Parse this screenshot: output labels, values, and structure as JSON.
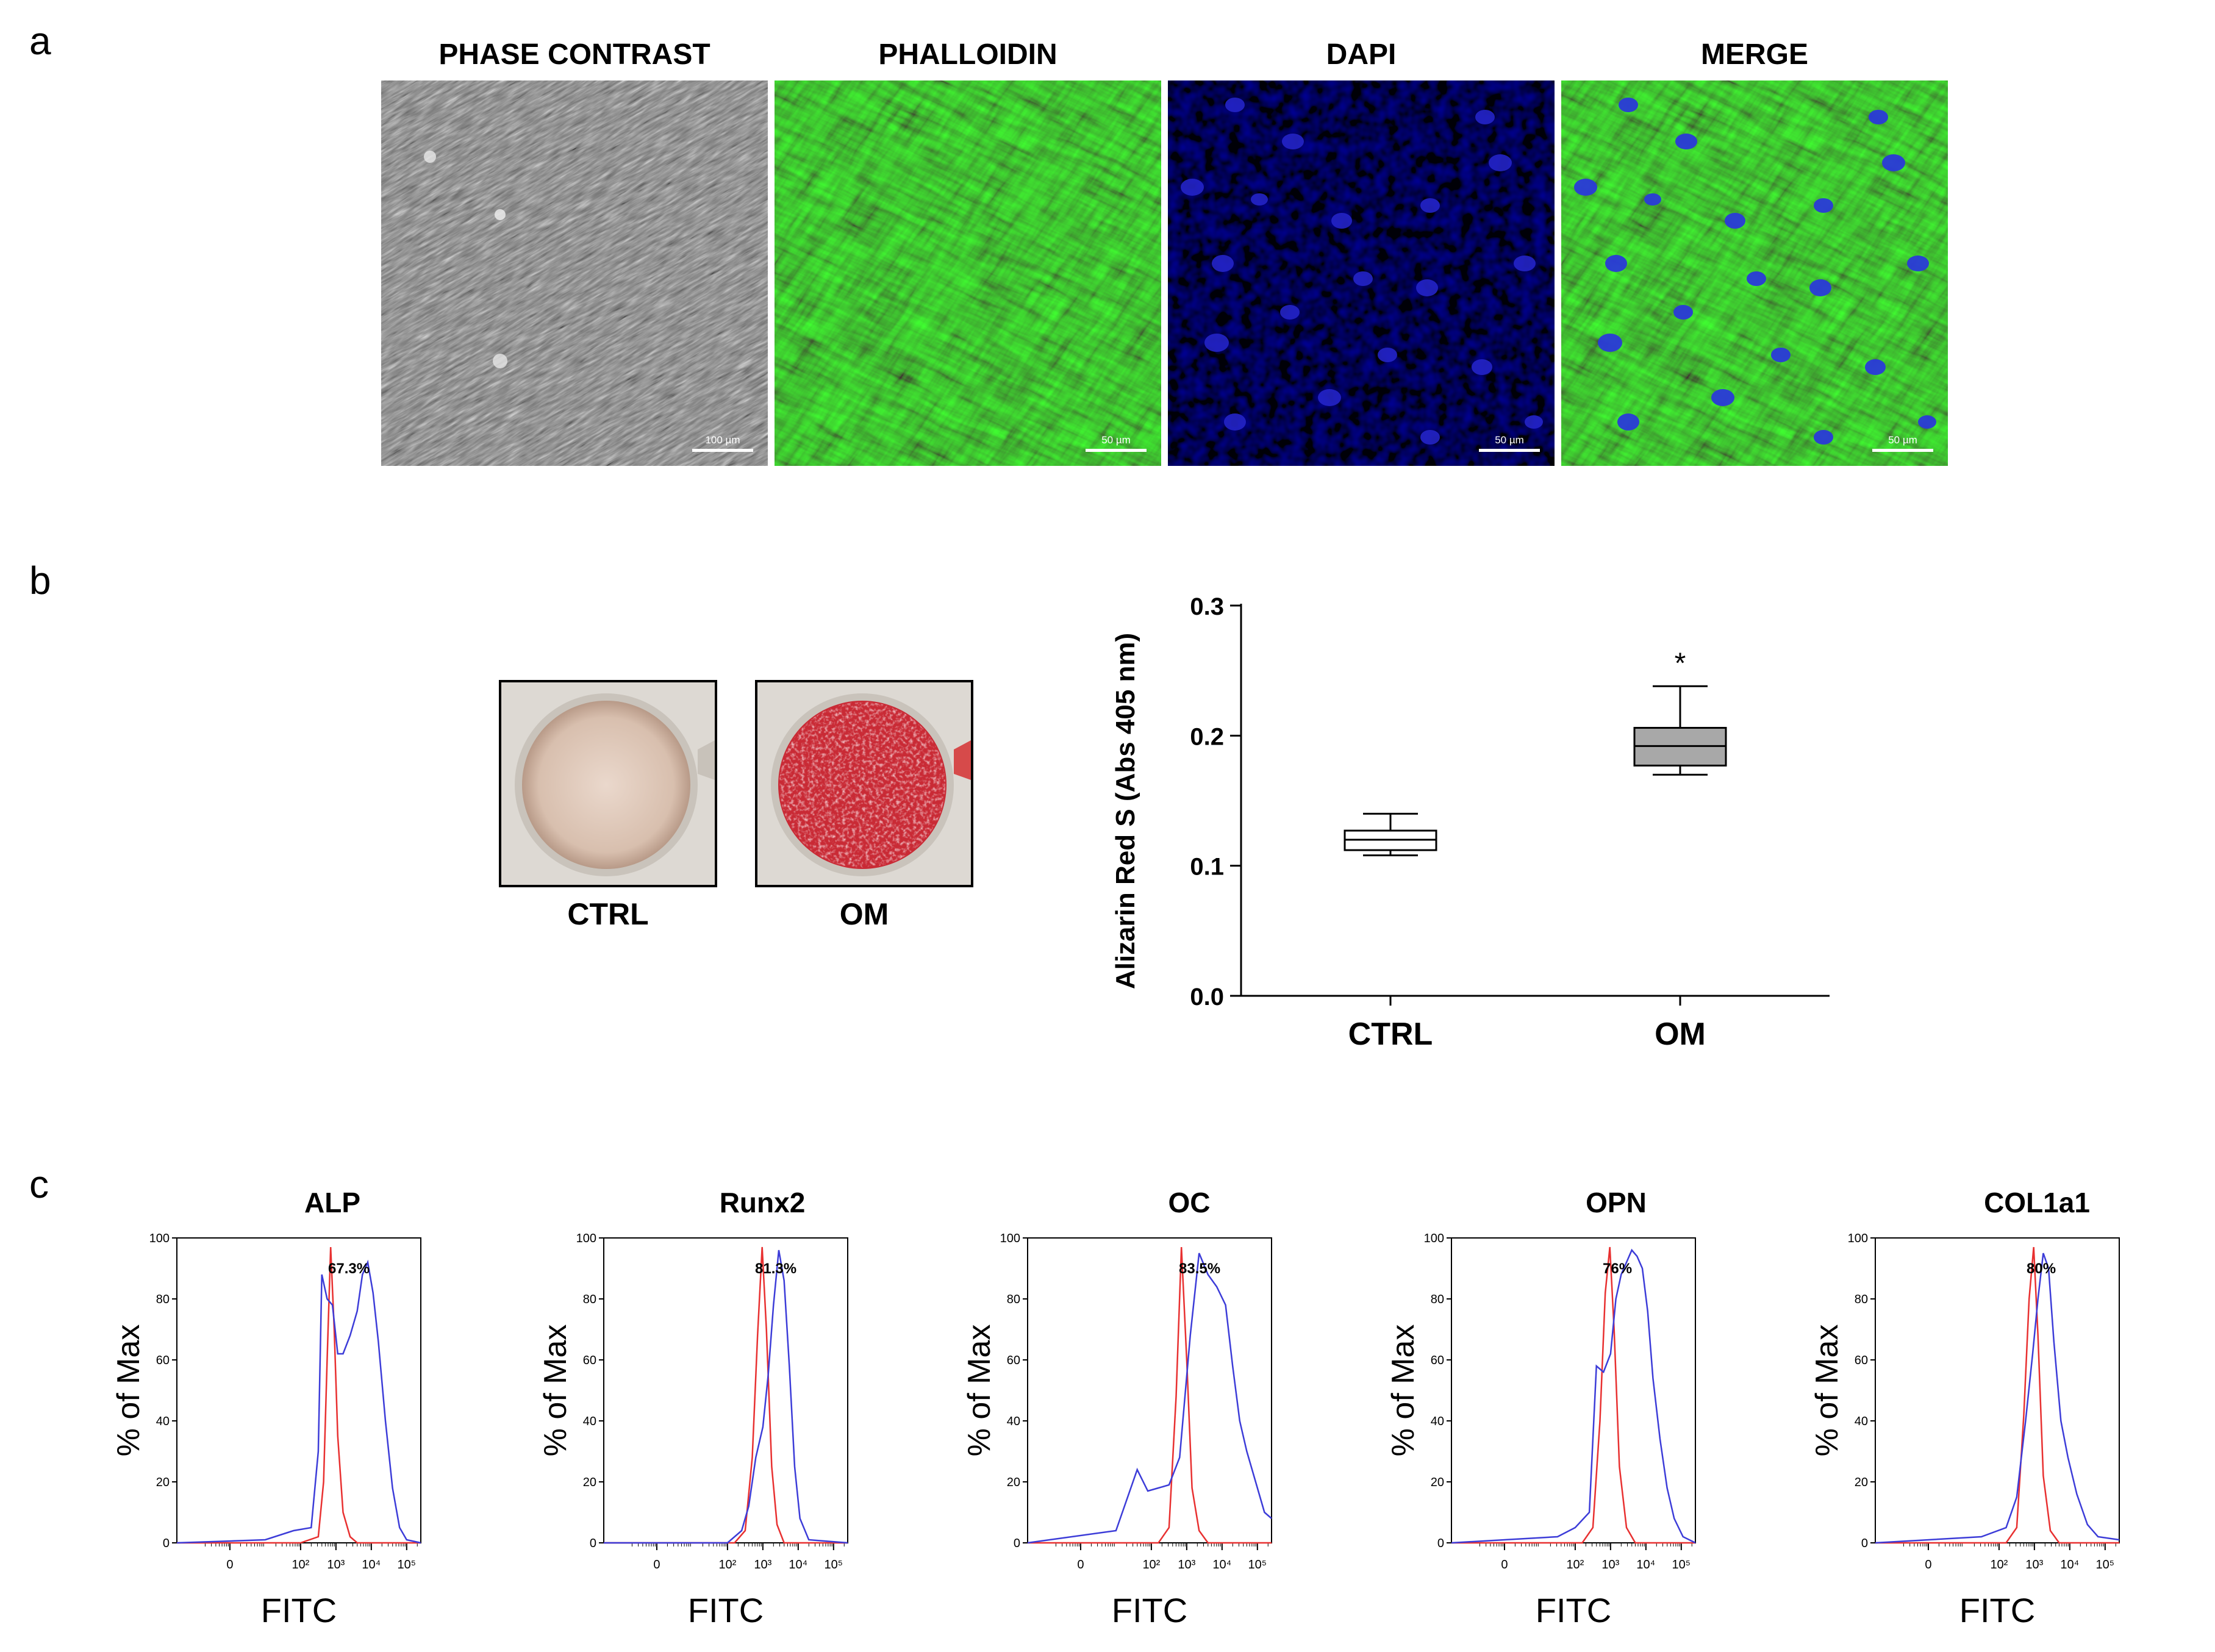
{
  "panel_a": {
    "letter": "a",
    "images": [
      {
        "title": "PHASE CONTRAST",
        "scale": "100 µm"
      },
      {
        "title": "PHALLOIDIN",
        "scale": "50 µm"
      },
      {
        "title": "DAPI",
        "scale": "50 µm"
      },
      {
        "title": "MERGE",
        "scale": "50 µm"
      }
    ]
  },
  "panel_b": {
    "letter": "b",
    "dishes": [
      {
        "label": "CTRL"
      },
      {
        "label": "OM"
      }
    ]
  },
  "panel_c": {
    "letter": "c"
  },
  "colors": {
    "isotype": "#e83030",
    "stained": "#3c3cd8",
    "box_ctrl": "#ffffff",
    "box_om": "#a8a8a8"
  },
  "chart_data": [
    {
      "type": "box",
      "ylabel": "Alizarin Red S (Abs 405 nm)",
      "ylim": [
        0.0,
        0.3
      ],
      "yticks": [
        "0.0",
        "0.1",
        "0.2",
        "0.3"
      ],
      "categories": [
        "CTRL",
        "OM"
      ],
      "boxes": [
        {
          "name": "CTRL",
          "min": 0.108,
          "q1": 0.112,
          "median": 0.12,
          "q3": 0.127,
          "max": 0.14
        },
        {
          "name": "OM",
          "min": 0.17,
          "q1": 0.177,
          "median": 0.192,
          "q3": 0.206,
          "max": 0.238
        }
      ],
      "annotation": "*"
    },
    {
      "type": "histogram_panels",
      "xlabel": "FITC",
      "ylabel": "% of Max",
      "yticks": [
        "0",
        "20",
        "40",
        "60",
        "80",
        "100"
      ],
      "xticks": [
        "0",
        "10²",
        "10³",
        "10⁴",
        "10⁵"
      ],
      "panels": [
        {
          "title": "ALP",
          "percent": "67.3%",
          "red": [
            [
              -1.5,
              0
            ],
            [
              2,
              0
            ],
            [
              2.5,
              2
            ],
            [
              2.65,
              20
            ],
            [
              2.75,
              60
            ],
            [
              2.85,
              97
            ],
            [
              2.95,
              70
            ],
            [
              3.05,
              35
            ],
            [
              3.2,
              10
            ],
            [
              3.4,
              2
            ],
            [
              3.6,
              0
            ],
            [
              5.4,
              0
            ]
          ],
          "blue": [
            [
              -1.5,
              0
            ],
            [
              1,
              1
            ],
            [
              1.8,
              4
            ],
            [
              2.3,
              5
            ],
            [
              2.5,
              30
            ],
            [
              2.6,
              88
            ],
            [
              2.75,
              80
            ],
            [
              2.9,
              78
            ],
            [
              3.05,
              62
            ],
            [
              3.2,
              62
            ],
            [
              3.4,
              68
            ],
            [
              3.6,
              76
            ],
            [
              3.75,
              88
            ],
            [
              3.9,
              92
            ],
            [
              4.05,
              82
            ],
            [
              4.2,
              66
            ],
            [
              4.4,
              40
            ],
            [
              4.6,
              18
            ],
            [
              4.8,
              5
            ],
            [
              5,
              1
            ],
            [
              5.4,
              0
            ]
          ]
        },
        {
          "title": "Runx2",
          "percent": "81.3%",
          "red": [
            [
              -1.5,
              0
            ],
            [
              2.2,
              0
            ],
            [
              2.5,
              4
            ],
            [
              2.7,
              28
            ],
            [
              2.85,
              68
            ],
            [
              2.98,
              97
            ],
            [
              3.1,
              70
            ],
            [
              3.25,
              25
            ],
            [
              3.4,
              6
            ],
            [
              3.6,
              0
            ],
            [
              5.4,
              0
            ]
          ],
          "blue": [
            [
              -1.5,
              0
            ],
            [
              2,
              0
            ],
            [
              2.4,
              4
            ],
            [
              2.6,
              12
            ],
            [
              2.8,
              28
            ],
            [
              3,
              38
            ],
            [
              3.15,
              55
            ],
            [
              3.3,
              78
            ],
            [
              3.45,
              96
            ],
            [
              3.6,
              86
            ],
            [
              3.75,
              58
            ],
            [
              3.9,
              25
            ],
            [
              4.05,
              8
            ],
            [
              4.3,
              1
            ],
            [
              5.4,
              0
            ]
          ]
        },
        {
          "title": "OC",
          "percent": "83.5%",
          "red": [
            [
              -1.5,
              0
            ],
            [
              2.2,
              0
            ],
            [
              2.5,
              5
            ],
            [
              2.7,
              48
            ],
            [
              2.85,
              97
            ],
            [
              3,
              60
            ],
            [
              3.15,
              18
            ],
            [
              3.35,
              4
            ],
            [
              3.6,
              0
            ],
            [
              5.4,
              0
            ]
          ],
          "blue": [
            [
              -1.5,
              0
            ],
            [
              1,
              4
            ],
            [
              1.6,
              24
            ],
            [
              1.9,
              17
            ],
            [
              2.2,
              18
            ],
            [
              2.5,
              19
            ],
            [
              2.8,
              28
            ],
            [
              3.1,
              68
            ],
            [
              3.35,
              95
            ],
            [
              3.6,
              88
            ],
            [
              3.85,
              84
            ],
            [
              4.1,
              78
            ],
            [
              4.3,
              58
            ],
            [
              4.5,
              40
            ],
            [
              4.7,
              30
            ],
            [
              4.9,
              22
            ],
            [
              5.2,
              10
            ],
            [
              5.4,
              8
            ]
          ]
        },
        {
          "title": "OPN",
          "percent": "76%",
          "red": [
            [
              -1.5,
              0
            ],
            [
              2.2,
              0
            ],
            [
              2.5,
              5
            ],
            [
              2.7,
              40
            ],
            [
              2.85,
              82
            ],
            [
              2.98,
              97
            ],
            [
              3.1,
              70
            ],
            [
              3.25,
              25
            ],
            [
              3.45,
              5
            ],
            [
              3.7,
              0
            ],
            [
              5.4,
              0
            ]
          ],
          "blue": [
            [
              -1.5,
              0
            ],
            [
              1.5,
              2
            ],
            [
              2,
              5
            ],
            [
              2.4,
              10
            ],
            [
              2.6,
              58
            ],
            [
              2.8,
              56
            ],
            [
              3,
              62
            ],
            [
              3.15,
              80
            ],
            [
              3.3,
              88
            ],
            [
              3.45,
              92
            ],
            [
              3.6,
              96
            ],
            [
              3.75,
              94
            ],
            [
              3.9,
              90
            ],
            [
              4.05,
              76
            ],
            [
              4.2,
              54
            ],
            [
              4.4,
              34
            ],
            [
              4.6,
              18
            ],
            [
              4.8,
              8
            ],
            [
              5.05,
              2
            ],
            [
              5.4,
              0
            ]
          ]
        },
        {
          "title": "COL1a1",
          "percent": "80%",
          "red": [
            [
              -1.5,
              0
            ],
            [
              2.2,
              0
            ],
            [
              2.5,
              5
            ],
            [
              2.7,
              42
            ],
            [
              2.85,
              80
            ],
            [
              2.98,
              97
            ],
            [
              3.1,
              68
            ],
            [
              3.25,
              22
            ],
            [
              3.45,
              4
            ],
            [
              3.7,
              0
            ],
            [
              5.4,
              0
            ]
          ],
          "blue": [
            [
              -1.5,
              0
            ],
            [
              1.5,
              2
            ],
            [
              2.2,
              5
            ],
            [
              2.5,
              15
            ],
            [
              2.75,
              40
            ],
            [
              2.95,
              62
            ],
            [
              3.1,
              80
            ],
            [
              3.25,
              95
            ],
            [
              3.4,
              90
            ],
            [
              3.55,
              66
            ],
            [
              3.75,
              40
            ],
            [
              3.95,
              28
            ],
            [
              4.2,
              16
            ],
            [
              4.5,
              6
            ],
            [
              4.8,
              2
            ],
            [
              5.4,
              1
            ]
          ]
        }
      ]
    }
  ]
}
